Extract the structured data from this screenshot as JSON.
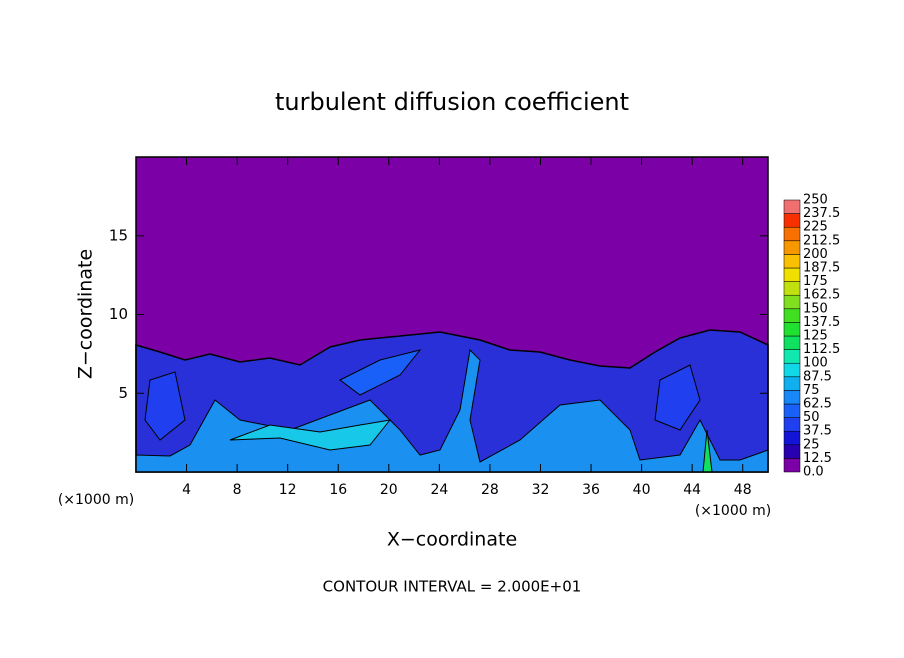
{
  "chart_data": {
    "type": "contour",
    "title": "turbulent diffusion coefficient",
    "x_label": "X−coordinate",
    "y_label": "Z−coordinate",
    "x_unit_labels": [
      "(×1000 m)",
      "(×1000 m)"
    ],
    "footer": "CONTOUR INTERVAL = 2.000E+01",
    "xlim": [
      0,
      50
    ],
    "xticks": [
      4,
      8,
      12,
      16,
      20,
      24,
      28,
      32,
      36,
      40,
      44,
      48
    ],
    "ylim": [
      0,
      20
    ],
    "yticks": [
      5,
      10,
      15
    ],
    "colorbar": {
      "levels": [
        {
          "value": 0,
          "label": "0.0"
        },
        12.5,
        25,
        37.5,
        50,
        62.5,
        75,
        87.5,
        100,
        112.5,
        125,
        137.5,
        150,
        162.5,
        175,
        187.5,
        200,
        212.5,
        225,
        237.5,
        250
      ],
      "colors": [
        "#7b00a6",
        "#2800b0",
        "#1414d8",
        "#2040f0",
        "#1860f8",
        "#1888f8",
        "#10b0f0",
        "#10d8e8",
        "#10e8b0",
        "#10e060",
        "#20e030",
        "#40e020",
        "#80e020",
        "#c0e010",
        "#f0e000",
        "#f8c000",
        "#f89800",
        "#f87000",
        "#f83000",
        "#f07070"
      ]
    }
  }
}
